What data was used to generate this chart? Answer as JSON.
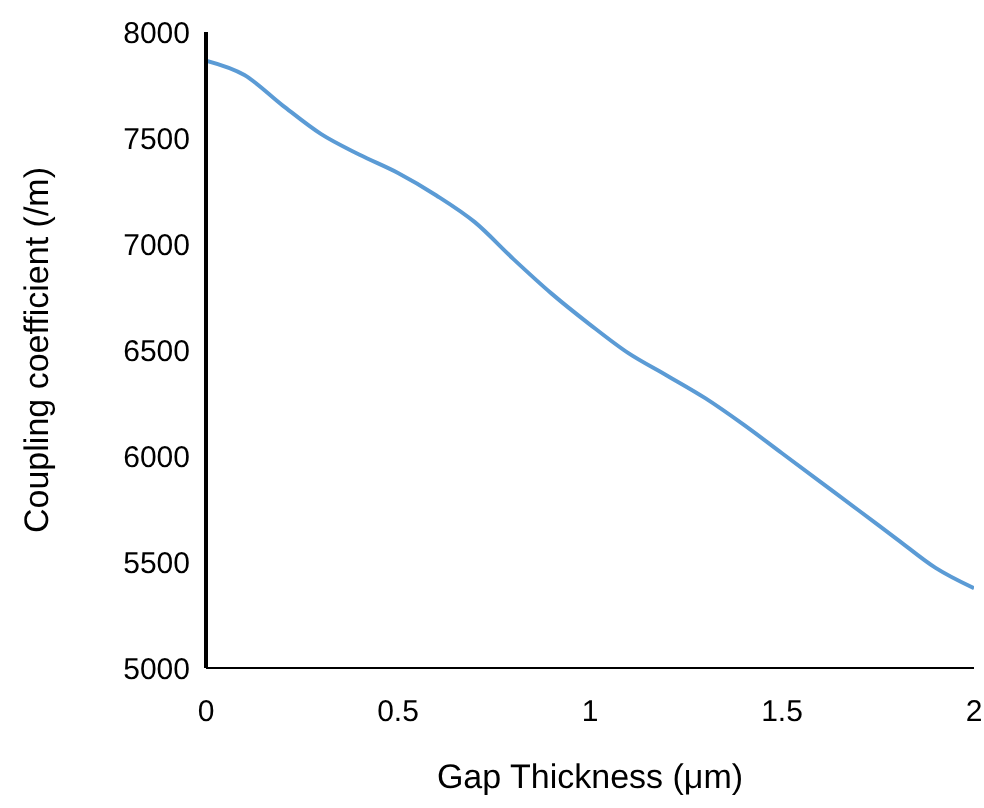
{
  "chart_data": {
    "type": "line",
    "xlabel": "Gap Thickness (μm)",
    "ylabel": "Coupling coefficient (/m)",
    "x": [
      0,
      0.1,
      0.2,
      0.3,
      0.4,
      0.5,
      0.6,
      0.7,
      0.8,
      0.9,
      1.0,
      1.1,
      1.2,
      1.3,
      1.4,
      1.5,
      1.6,
      1.7,
      1.8,
      1.9,
      2.0
    ],
    "series": [
      {
        "color": "#5b9bd5",
        "values": [
          7865,
          7797,
          7653,
          7518,
          7421,
          7335,
          7229,
          7103,
          6930,
          6766,
          6620,
          6485,
          6380,
          6273,
          6148,
          6013,
          5878,
          5743,
          5607,
          5472,
          5376
        ]
      }
    ],
    "xlim": [
      0,
      2
    ],
    "xticks": [
      0,
      0.5,
      1,
      1.5,
      2
    ],
    "ylim": [
      5000,
      8000
    ],
    "yticks": [
      5000,
      5500,
      6000,
      6500,
      7000,
      7500,
      8000
    ],
    "grid": false,
    "legend": false,
    "marker": "none",
    "line_style": "solid"
  }
}
